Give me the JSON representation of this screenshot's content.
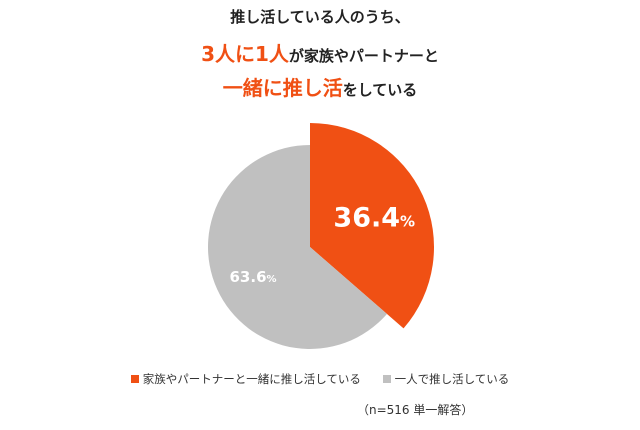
{
  "title": {
    "line1": "推し活している人のうち、",
    "line2_accent": "3人に1人",
    "line2_rest": "が家族やパートナーと",
    "line3_accent": "一緒に推し活",
    "line3_rest": "をしている"
  },
  "colors": {
    "accent": "#f05014",
    "gray": "#c0c0c0"
  },
  "chart_data": {
    "type": "pie",
    "slices": [
      {
        "name": "家族やパートナーと一緒に推し活している",
        "value": 36.4,
        "label": "36.4",
        "unit": "%",
        "color": "#f05014"
      },
      {
        "name": "一人で推し活している",
        "value": 63.6,
        "label": "63.6",
        "unit": "%",
        "color": "#c0c0c0"
      }
    ],
    "legend_position": "bottom",
    "note": "（n=516 単一解答）"
  }
}
